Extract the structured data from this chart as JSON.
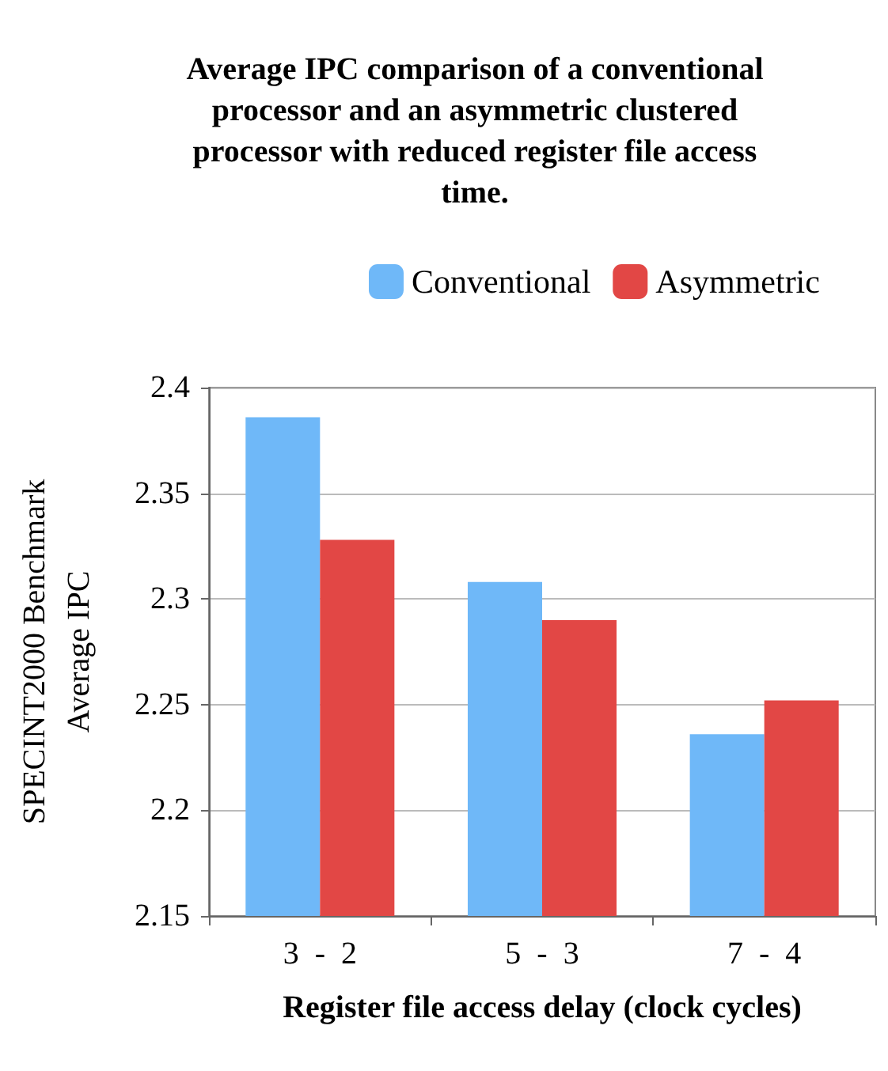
{
  "chart_data": {
    "type": "bar",
    "title": "Average IPC comparison of a conventional processor and an asymmetric clustered processor with reduced register file access time.",
    "xlabel": "Register file access delay (clock cycles)",
    "ylabel": "SPECINT2000 Benchmark Average IPC",
    "categories": [
      "3  -  2",
      "5  -  3",
      "7  -  4"
    ],
    "series": [
      {
        "name": "Conventional",
        "color": "#6fb8f8",
        "values": [
          2.386,
          2.308,
          2.236
        ]
      },
      {
        "name": "Asymmetric",
        "color": "#e24745",
        "values": [
          2.328,
          2.29,
          2.252
        ]
      }
    ],
    "ylim": [
      2.15,
      2.4
    ],
    "yticks": [
      2.15,
      2.2,
      2.25,
      2.3,
      2.35,
      2.4
    ],
    "grid": "y",
    "legend": "top"
  }
}
